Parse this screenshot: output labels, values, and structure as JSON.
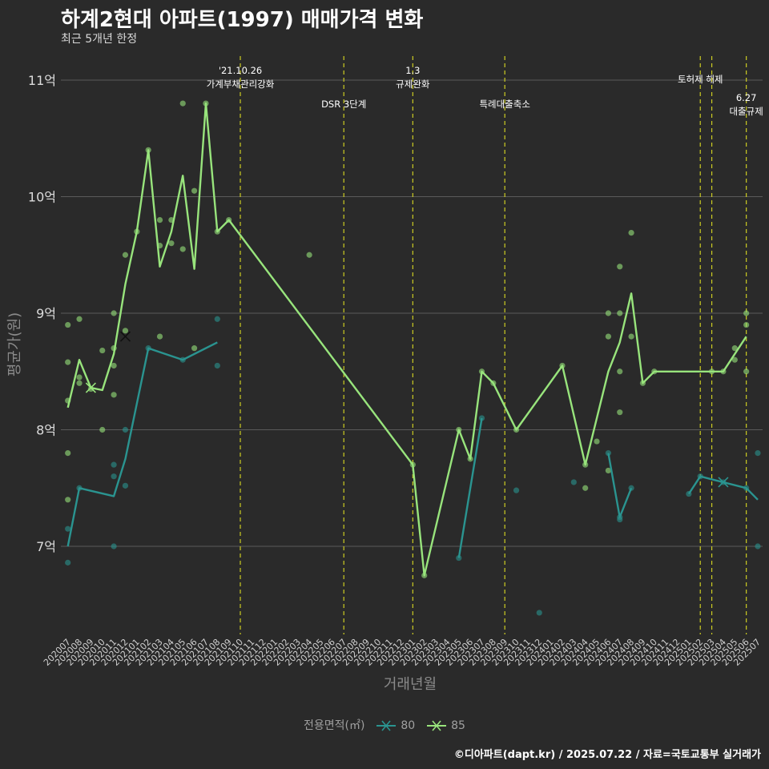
{
  "chart_data": {
    "type": "line",
    "title": "하계2현대 아파트(1997) 매매가격 변화",
    "subtitle": "최근 5개년 한정",
    "xlabel": "거래년월",
    "ylabel": "평균가(원)",
    "caption": "©디아파트(dapt.kr) / 2025.07.22 / 자료=국토교통부 실거래가",
    "legend_title": "전용면적(㎡)",
    "grid": true,
    "ylim": [
      6.25,
      11.2
    ],
    "y_ticks": [
      7,
      8,
      9,
      10,
      11
    ],
    "y_tick_labels": [
      "7억",
      "8억",
      "9억",
      "10억",
      "11억"
    ],
    "categories": [
      "202007",
      "202008",
      "202009",
      "202010",
      "202011",
      "202012",
      "202101",
      "202102",
      "202103",
      "202104",
      "202105",
      "202106",
      "202107",
      "202108",
      "202109",
      "202110",
      "202111",
      "202112",
      "202201",
      "202202",
      "202203",
      "202204",
      "202205",
      "202206",
      "202207",
      "202208",
      "202209",
      "202210",
      "202211",
      "202212",
      "202301",
      "202302",
      "202303",
      "202304",
      "202305",
      "202306",
      "202307",
      "202308",
      "202309",
      "202310",
      "202311",
      "202312",
      "202401",
      "202402",
      "202403",
      "202404",
      "202405",
      "202406",
      "202407",
      "202408",
      "202409",
      "202410",
      "202411",
      "202412",
      "202501",
      "202502",
      "202503",
      "202504",
      "202505",
      "202506",
      "202507"
    ],
    "series": [
      {
        "name": "80",
        "color": "#2a9490",
        "line": [
          [
            [
              "202007",
              7.0
            ],
            [
              "202008",
              7.5
            ],
            [
              "202011",
              7.43
            ],
            [
              "202012",
              7.75
            ],
            [
              "202102",
              8.7
            ],
            [
              "202105",
              8.6
            ],
            [
              "202108",
              8.75
            ]
          ],
          [
            [
              "202305",
              6.9
            ],
            [
              "202307",
              8.1
            ]
          ],
          [
            [
              "202406",
              7.8
            ],
            [
              "202407",
              7.25
            ],
            [
              "202408",
              7.5
            ]
          ],
          [
            [
              "202501",
              7.45
            ],
            [
              "202502",
              7.6
            ],
            [
              "202504",
              7.55
            ],
            [
              "202506",
              7.5
            ],
            [
              "202507",
              7.4
            ]
          ]
        ],
        "points": [
          [
            "202007",
            7.15
          ],
          [
            "202007",
            6.86
          ],
          [
            "202008",
            7.5
          ],
          [
            "202011",
            7.0
          ],
          [
            "202011",
            7.6
          ],
          [
            "202011",
            7.7
          ],
          [
            "202012",
            7.52
          ],
          [
            "202012",
            8.0
          ],
          [
            "202102",
            8.7
          ],
          [
            "202105",
            8.6
          ],
          [
            "202108",
            8.95
          ],
          [
            "202108",
            8.55
          ],
          [
            "202305",
            6.9
          ],
          [
            "202307",
            8.1
          ],
          [
            "202310",
            7.48
          ],
          [
            "202312",
            6.43
          ],
          [
            "202403",
            7.55
          ],
          [
            "202406",
            7.8
          ],
          [
            "202407",
            7.23
          ],
          [
            "202407",
            7.25
          ],
          [
            "202408",
            7.5
          ],
          [
            "202501",
            7.45
          ],
          [
            "202502",
            7.6
          ],
          [
            "202504",
            7.55
          ],
          [
            "202506",
            7.5
          ],
          [
            "202507",
            7.0
          ],
          [
            "202507",
            7.8
          ]
        ],
        "markers": [
          [
            "202504",
            7.55
          ]
        ]
      },
      {
        "name": "85",
        "color": "#98e47c",
        "line": [
          [
            [
              "202007",
              8.19
            ],
            [
              "202008",
              8.6
            ],
            [
              "202009",
              8.36
            ],
            [
              "202010",
              8.34
            ],
            [
              "202011",
              8.65
            ],
            [
              "202012",
              9.25
            ],
            [
              "202101",
              9.7
            ],
            [
              "202102",
              10.4
            ],
            [
              "202103",
              9.4
            ],
            [
              "202104",
              9.7
            ],
            [
              "202105",
              10.18
            ],
            [
              "202106",
              9.38
            ],
            [
              "202107",
              10.8
            ],
            [
              "202108",
              9.7
            ],
            [
              "202109",
              9.8
            ],
            [
              "202301",
              7.7
            ],
            [
              "202302",
              6.75
            ],
            [
              "202305",
              8.0
            ],
            [
              "202306",
              7.75
            ],
            [
              "202307",
              8.5
            ],
            [
              "202308",
              8.4
            ],
            [
              "202310",
              8.0
            ],
            [
              "202402",
              8.55
            ],
            [
              "202404",
              7.7
            ],
            [
              "202406",
              8.5
            ],
            [
              "202407",
              8.75
            ],
            [
              "202408",
              9.17
            ],
            [
              "202409",
              8.4
            ],
            [
              "202410",
              8.5
            ],
            [
              "202503",
              8.5
            ],
            [
              "202504",
              8.5
            ],
            [
              "202506",
              8.8
            ]
          ]
        ],
        "points": [
          [
            "202007",
            8.25
          ],
          [
            "202007",
            8.58
          ],
          [
            "202007",
            8.9
          ],
          [
            "202007",
            7.8
          ],
          [
            "202007",
            7.4
          ],
          [
            "202008",
            8.45
          ],
          [
            "202008",
            8.4
          ],
          [
            "202008",
            8.95
          ],
          [
            "202009",
            8.35
          ],
          [
            "202010",
            8.68
          ],
          [
            "202010",
            8.0
          ],
          [
            "202011",
            8.3
          ],
          [
            "202011",
            8.55
          ],
          [
            "202011",
            8.7
          ],
          [
            "202011",
            9.0
          ],
          [
            "202012",
            8.85
          ],
          [
            "202012",
            9.5
          ],
          [
            "202101",
            9.7
          ],
          [
            "202102",
            10.4
          ],
          [
            "202103",
            9.58
          ],
          [
            "202103",
            9.8
          ],
          [
            "202103",
            8.8
          ],
          [
            "202104",
            9.8
          ],
          [
            "202104",
            9.6
          ],
          [
            "202105",
            10.8
          ],
          [
            "202105",
            9.55
          ],
          [
            "202106",
            10.05
          ],
          [
            "202106",
            8.7
          ],
          [
            "202107",
            10.8
          ],
          [
            "202108",
            9.7
          ],
          [
            "202109",
            9.8
          ],
          [
            "202204",
            9.5
          ],
          [
            "202301",
            7.7
          ],
          [
            "202302",
            6.75
          ],
          [
            "202305",
            8.0
          ],
          [
            "202306",
            7.75
          ],
          [
            "202307",
            8.5
          ],
          [
            "202308",
            8.4
          ],
          [
            "202310",
            8.0
          ],
          [
            "202402",
            8.55
          ],
          [
            "202404",
            7.5
          ],
          [
            "202404",
            7.7
          ],
          [
            "202405",
            7.9
          ],
          [
            "202406",
            7.65
          ],
          [
            "202406",
            8.8
          ],
          [
            "202406",
            9.0
          ],
          [
            "202407",
            9.4
          ],
          [
            "202407",
            9.0
          ],
          [
            "202407",
            8.5
          ],
          [
            "202407",
            8.15
          ],
          [
            "202408",
            9.69
          ],
          [
            "202408",
            8.8
          ],
          [
            "202409",
            8.4
          ],
          [
            "202410",
            8.5
          ],
          [
            "202503",
            8.5
          ],
          [
            "202504",
            8.5
          ],
          [
            "202505",
            8.6
          ],
          [
            "202505",
            8.7
          ],
          [
            "202506",
            9.0
          ],
          [
            "202506",
            8.9
          ],
          [
            "202506",
            8.5
          ]
        ],
        "markers": [
          [
            "202009",
            8.36
          ],
          [
            "202012",
            8.8
          ]
        ]
      }
    ],
    "events": [
      {
        "x": "202110",
        "label": "'21.10.26\n가계부채관리강화",
        "row": 0
      },
      {
        "x": "202207",
        "label": "DSR 3단계",
        "row": 1
      },
      {
        "x": "202301",
        "label": "1.3\n규제완화",
        "row": 0
      },
      {
        "x": "202309",
        "label": "특례대출축소",
        "row": 1
      },
      {
        "x": "202502",
        "label": "토허제 해제",
        "row": 2
      },
      {
        "x": "202503",
        "label": "",
        "row": 2
      },
      {
        "x": "202506",
        "label": "6.27\n대출규제",
        "row": 3
      }
    ],
    "event_line_color": "#cccc22"
  }
}
